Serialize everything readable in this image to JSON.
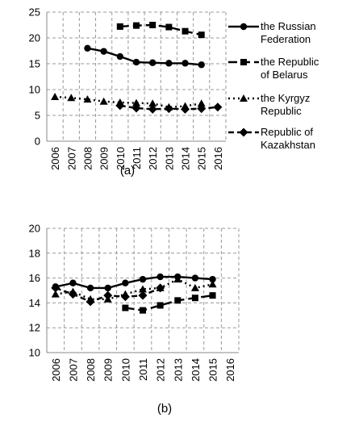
{
  "chart_data": [
    {
      "type": "line",
      "caption": "(a)",
      "categories": [
        "2006",
        "2007",
        "2008",
        "2009",
        "2010",
        "2011",
        "2012",
        "2013",
        "2014",
        "2015",
        "2016"
      ],
      "ylim": [
        0,
        25
      ],
      "yticks": [
        0,
        5,
        10,
        15,
        20,
        25
      ],
      "grid": true,
      "legend": "right",
      "series": [
        {
          "name": "the Russian Federation",
          "legend_lines": [
            "the Russian",
            "Federation"
          ],
          "dash": "solid",
          "marker": "circle",
          "values": [
            null,
            null,
            18.0,
            17.4,
            16.4,
            15.3,
            15.2,
            15.1,
            15.1,
            14.8,
            null
          ]
        },
        {
          "name": "the Republic of Belarus",
          "legend_lines": [
            "the Republic",
            "of Belarus"
          ],
          "dash": "longdash",
          "marker": "square",
          "values": [
            null,
            null,
            null,
            null,
            22.2,
            22.4,
            22.5,
            22.1,
            21.3,
            20.6,
            null
          ]
        },
        {
          "name": "the Kyrgyz Republic",
          "legend_lines": [
            "the Kyrgyz",
            "Republic"
          ],
          "dash": "dotted",
          "marker": "triangle",
          "values": [
            8.6,
            8.4,
            8.1,
            7.7,
            7.5,
            7.4,
            7.3,
            6.6,
            6.8,
            7.3,
            null
          ]
        },
        {
          "name": "Republic of Kazakhstan",
          "legend_lines": [
            "Republic of",
            "Kazakhstan"
          ],
          "dash": "dashed",
          "marker": "diamond",
          "values": [
            null,
            null,
            null,
            null,
            6.9,
            6.4,
            6.2,
            6.3,
            6.2,
            6.3,
            6.6
          ]
        }
      ]
    },
    {
      "type": "line",
      "caption": "(b)",
      "categories": [
        "2006",
        "2007",
        "2008",
        "2009",
        "2010",
        "2011",
        "2012",
        "2013",
        "2014",
        "2015",
        "2016"
      ],
      "ylim": [
        10,
        20
      ],
      "yticks": [
        10,
        12,
        14,
        16,
        18,
        20
      ],
      "grid": true,
      "legend": "none",
      "series": [
        {
          "name": "the Russian Federation",
          "dash": "solid",
          "marker": "circle",
          "values": [
            15.3,
            15.6,
            15.2,
            15.2,
            15.6,
            15.9,
            16.1,
            16.1,
            16.0,
            15.9,
            null
          ]
        },
        {
          "name": "the Republic of Belarus",
          "dash": "longdash",
          "marker": "square",
          "values": [
            null,
            null,
            null,
            null,
            13.6,
            13.4,
            13.8,
            14.2,
            14.4,
            14.6,
            null
          ]
        },
        {
          "name": "the Kyrgyz Republic",
          "dash": "dotted",
          "marker": "triangle",
          "values": [
            14.7,
            14.9,
            14.3,
            14.3,
            14.7,
            15.1,
            15.2,
            15.9,
            15.2,
            15.5,
            null
          ]
        },
        {
          "name": "Republic of Kazakhstan",
          "dash": "dashed",
          "marker": "diamond",
          "values": [
            15.2,
            14.7,
            14.1,
            14.6,
            14.5,
            14.6,
            15.2,
            null,
            null,
            null,
            null
          ]
        }
      ]
    }
  ]
}
